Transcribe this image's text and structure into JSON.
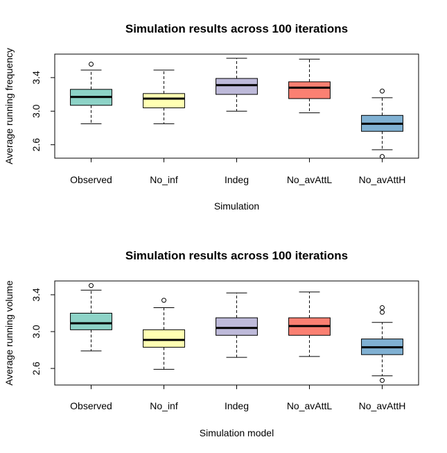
{
  "chart_data": [
    {
      "type": "boxplot",
      "title": "Simulation results across 100 iterations",
      "xlabel": "Simulation",
      "ylabel": "Average running frequency",
      "ylim": [
        2.44,
        3.68
      ],
      "yticks": [
        2.6,
        3.0,
        3.4
      ],
      "categories": [
        "Observed",
        "No_inf",
        "Indeg",
        "No_avAttL",
        "No_avAttH"
      ],
      "colors": [
        "#8DD3C7",
        "#FFFFB3",
        "#BEBADA",
        "#FB8072",
        "#80B1D3"
      ],
      "boxes": [
        {
          "whisker_low": 2.85,
          "q1": 3.07,
          "median": 3.17,
          "q3": 3.26,
          "whisker_high": 3.49,
          "outliers": [
            3.56
          ]
        },
        {
          "whisker_low": 2.85,
          "q1": 3.04,
          "median": 3.15,
          "q3": 3.21,
          "whisker_high": 3.49,
          "outliers": []
        },
        {
          "whisker_low": 3.0,
          "q1": 3.2,
          "median": 3.31,
          "q3": 3.39,
          "whisker_high": 3.63,
          "outliers": []
        },
        {
          "whisker_low": 2.98,
          "q1": 3.15,
          "median": 3.28,
          "q3": 3.35,
          "whisker_high": 3.62,
          "outliers": []
        },
        {
          "whisker_low": 2.54,
          "q1": 2.76,
          "median": 2.85,
          "q3": 2.95,
          "whisker_high": 3.16,
          "outliers": [
            3.24,
            2.46
          ]
        }
      ]
    },
    {
      "type": "boxplot",
      "title": "Simulation results across 100 iterations",
      "xlabel": "Simulation model",
      "ylabel": "Average running volume",
      "ylim": [
        2.42,
        3.55
      ],
      "yticks": [
        2.6,
        3.0,
        3.4
      ],
      "categories": [
        "Observed",
        "No_inf",
        "Indeg",
        "No_avAttL",
        "No_avAttH"
      ],
      "colors": [
        "#8DD3C7",
        "#FFFFB3",
        "#BEBADA",
        "#FB8072",
        "#80B1D3"
      ],
      "boxes": [
        {
          "whisker_low": 2.79,
          "q1": 3.02,
          "median": 3.09,
          "q3": 3.2,
          "whisker_high": 3.45,
          "outliers": [
            3.5
          ]
        },
        {
          "whisker_low": 2.59,
          "q1": 2.83,
          "median": 2.91,
          "q3": 3.02,
          "whisker_high": 3.26,
          "outliers": [
            3.34
          ]
        },
        {
          "whisker_low": 2.72,
          "q1": 2.96,
          "median": 3.04,
          "q3": 3.15,
          "whisker_high": 3.42,
          "outliers": []
        },
        {
          "whisker_low": 2.73,
          "q1": 2.96,
          "median": 3.06,
          "q3": 3.15,
          "whisker_high": 3.43,
          "outliers": []
        },
        {
          "whisker_low": 2.52,
          "q1": 2.75,
          "median": 2.83,
          "q3": 2.92,
          "whisker_high": 3.1,
          "outliers": [
            3.26,
            3.21,
            2.47
          ]
        }
      ]
    }
  ]
}
